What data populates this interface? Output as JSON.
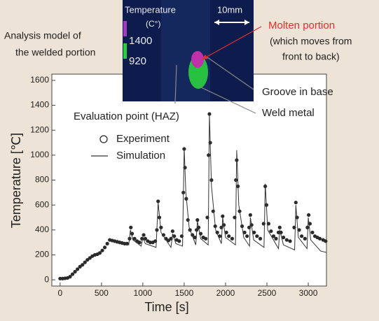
{
  "chart_data": {
    "type": "line",
    "x_label": "Time [s]",
    "y_label": "Temperature [℃]",
    "xlim": [
      -100,
      3220
    ],
    "ylim": [
      -50,
      1650
    ],
    "xticks": [
      0,
      500,
      1000,
      1500,
      2000,
      2500,
      3000
    ],
    "yticks": [
      0,
      200,
      400,
      600,
      800,
      1000,
      1200,
      1400,
      1600
    ],
    "series": [
      {
        "name": "Experiment",
        "style": "markers",
        "color": "#2a2a2a",
        "x": [
          0,
          30,
          60,
          90,
          120,
          150,
          180,
          210,
          240,
          270,
          300,
          330,
          360,
          390,
          420,
          450,
          480,
          510,
          540,
          570,
          600,
          630,
          660,
          690,
          720,
          750,
          780,
          810,
          840,
          855,
          870,
          900,
          930,
          960,
          990,
          1010,
          1030,
          1060,
          1090,
          1120,
          1150,
          1170,
          1185,
          1200,
          1220,
          1250,
          1280,
          1310,
          1340,
          1360,
          1380,
          1410,
          1440,
          1470,
          1490,
          1500,
          1510,
          1525,
          1545,
          1570,
          1600,
          1630,
          1650,
          1660,
          1675,
          1700,
          1730,
          1760,
          1780,
          1795,
          1805,
          1815,
          1830,
          1850,
          1875,
          1900,
          1930,
          1950,
          1965,
          1980,
          2010,
          2040,
          2080,
          2110,
          2125,
          2135,
          2150,
          2170,
          2200,
          2230,
          2260,
          2285,
          2300,
          2315,
          2345,
          2380,
          2420,
          2460,
          2480,
          2495,
          2520,
          2550,
          2580,
          2610,
          2640,
          2655,
          2670,
          2700,
          2740,
          2780,
          2830,
          2850,
          2865,
          2890,
          2920,
          2960,
          2990,
          3005,
          3020,
          3050,
          3080,
          3110,
          3140,
          3180,
          3210
        ],
        "values": [
          10,
          10,
          12,
          15,
          25,
          45,
          65,
          85,
          105,
          120,
          140,
          160,
          175,
          190,
          200,
          205,
          215,
          235,
          260,
          290,
          320,
          315,
          310,
          305,
          300,
          295,
          290,
          290,
          330,
          420,
          370,
          330,
          310,
          300,
          330,
          360,
          330,
          310,
          300,
          300,
          310,
          400,
          630,
          500,
          420,
          360,
          330,
          315,
          330,
          390,
          350,
          320,
          310,
          350,
          700,
          1050,
          900,
          650,
          480,
          400,
          360,
          340,
          400,
          480,
          420,
          370,
          340,
          330,
          500,
          1000,
          1330,
          1100,
          800,
          550,
          430,
          380,
          350,
          420,
          510,
          440,
          380,
          350,
          330,
          500,
          800,
          960,
          750,
          550,
          430,
          380,
          350,
          420,
          520,
          440,
          380,
          350,
          330,
          450,
          750,
          600,
          450,
          390,
          350,
          330,
          380,
          420,
          380,
          340,
          320,
          310,
          420,
          620,
          500,
          400,
          350,
          330,
          420,
          520,
          450,
          380,
          350,
          340,
          330,
          320,
          310
        ]
      },
      {
        "name": "Simulation",
        "style": "line",
        "color": "#333333",
        "x": [
          600,
          700,
          830,
          850,
          880,
          980,
          1000,
          1030,
          1160,
          1185,
          1220,
          1340,
          1360,
          1400,
          1480,
          1500,
          1520,
          1560,
          1640,
          1660,
          1700,
          1790,
          1805,
          1830,
          1880,
          1950,
          1965,
          2000,
          2120,
          2135,
          2160,
          2220,
          2290,
          2300,
          2340,
          2465,
          2480,
          2510,
          2640,
          2655,
          2700,
          2835,
          2850,
          2880,
          2985,
          3000,
          3030,
          3150,
          3220
        ],
        "values": [
          310,
          300,
          280,
          400,
          320,
          270,
          340,
          290,
          260,
          620,
          380,
          260,
          370,
          290,
          270,
          1060,
          700,
          420,
          280,
          470,
          330,
          280,
          1330,
          750,
          400,
          290,
          500,
          340,
          280,
          1040,
          600,
          340,
          270,
          500,
          320,
          260,
          770,
          400,
          250,
          400,
          280,
          240,
          600,
          340,
          250,
          500,
          320,
          230,
          220
        ]
      }
    ],
    "annotations": [
      "Analysis model of",
      "the welded portion",
      "Temperature",
      "(C°)",
      "1400",
      "920",
      "10mm",
      "Molten portion",
      "(which moves from",
      "front to back)",
      "Groove in base",
      "Weld metal",
      "Evaluation point (HAZ)"
    ]
  }
}
